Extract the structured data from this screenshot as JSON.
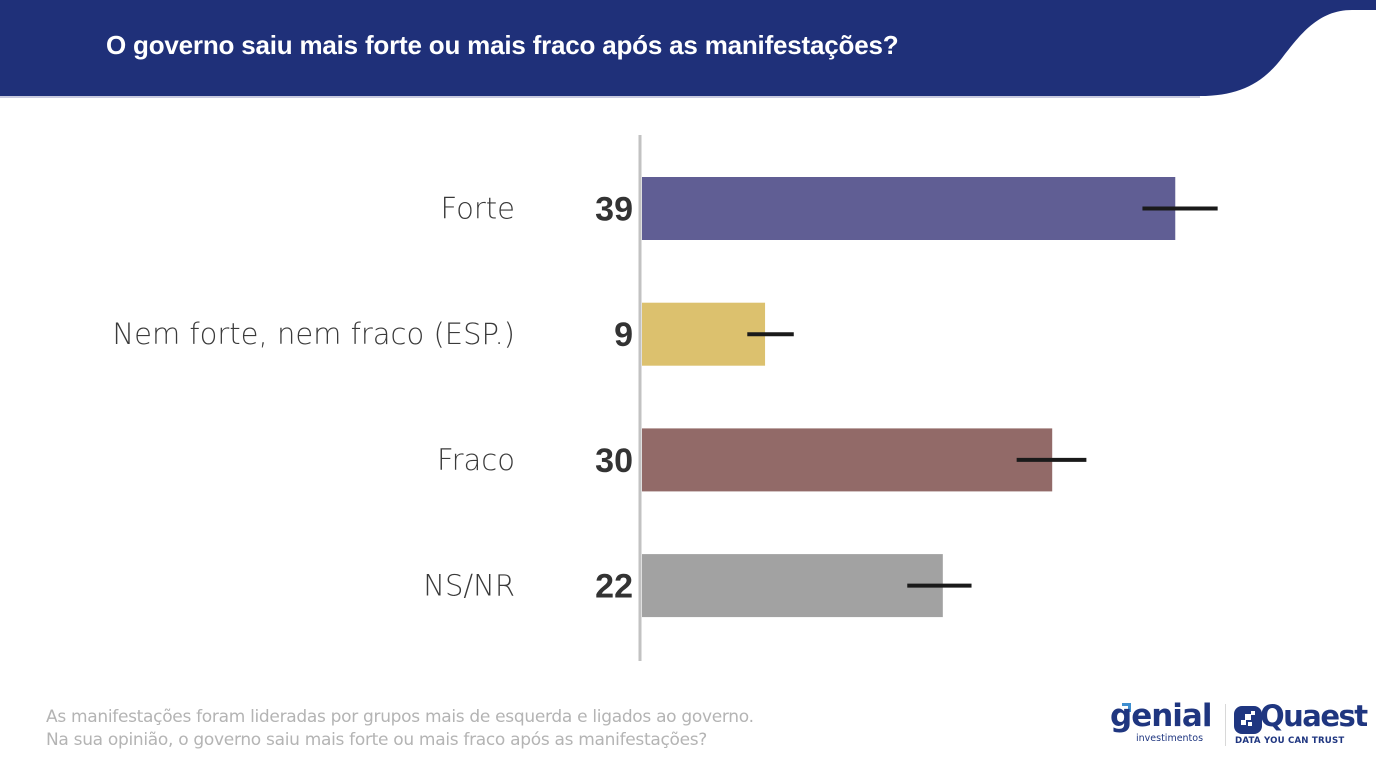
{
  "header": {
    "title": "O governo saiu mais forte ou mais fraco após as manifestações?",
    "background_color": "#1f3079"
  },
  "chart_data": {
    "type": "bar",
    "orientation": "horizontal",
    "title": "O governo saiu mais forte ou mais fraco após as manifestações?",
    "xlabel": "",
    "ylabel": "",
    "unit": "%",
    "xlim": [
      0,
      49
    ],
    "grid": false,
    "legend": null,
    "categories": [
      "Forte",
      "Nem forte, nem fraco (ESP.)",
      "Fraco",
      "NS/NR"
    ],
    "values": [
      39,
      9,
      30,
      22
    ],
    "value_labels": [
      "39",
      "9",
      "30",
      "22"
    ],
    "error_bars": [
      {
        "low": 36.6,
        "high": 42.1
      },
      {
        "low": 7.7,
        "high": 11.1
      },
      {
        "low": 27.4,
        "high": 32.5
      },
      {
        "low": 19.4,
        "high": 24.1
      }
    ],
    "colors": [
      "#605e94",
      "#dcc16e",
      "#926a68",
      "#a2a2a2"
    ]
  },
  "footnote": {
    "lines": [
      "As manifestações foram lideradas por grupos mais de esquerda e ligados ao governo.",
      "Na sua opinião, o governo saiu mais forte ou mais fraco após as manifestações?"
    ]
  },
  "logos": {
    "genial": {
      "name": "genial",
      "subtitle": "investimentos"
    },
    "quaest": {
      "name": "Quaest",
      "tagline": "DATA YOU CAN TRUST"
    },
    "brand_color": "#1f3680"
  }
}
